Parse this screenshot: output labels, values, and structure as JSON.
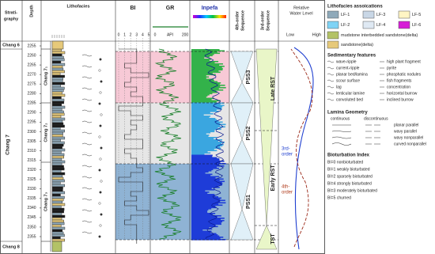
{
  "header": {
    "strat": [
      "Strati-",
      "graphy"
    ],
    "depth": "Depth",
    "litho": "Lithofacies",
    "bi": "BI",
    "bi_ticks": [
      "0",
      "1",
      "2",
      "3",
      "4",
      "5"
    ],
    "gr": "GR",
    "gr_ticks": [
      "0",
      "API",
      "200"
    ],
    "inpefa": "Inpefa",
    "seq4": [
      "4th-order",
      "Sequence"
    ],
    "seq3": [
      "3rd-order",
      "Sequence"
    ],
    "water": [
      "Relative",
      "Water Level"
    ],
    "water_ends": [
      "Low",
      "High"
    ]
  },
  "strat": {
    "chang6": "Chang 6",
    "chang7": "Chang 7",
    "chang8": "Chang 8",
    "sub": [
      "Chang 7₁",
      "Chang 7₂",
      "Chang 7₃"
    ]
  },
  "depths": [
    "2255",
    "2260",
    "2265",
    "2270",
    "2275",
    "2280",
    "2285",
    "2290",
    "2295",
    "2300",
    "2305",
    "2310",
    "2315",
    "2320",
    "2325",
    "2330",
    "2335",
    "2340",
    "2345",
    "2350",
    "2355"
  ],
  "seq4": [
    "PSS3",
    "PSS2",
    "PSS1"
  ],
  "seq3": [
    "Late RST",
    "Early RST",
    "TST"
  ],
  "curve_labels": [
    "3rd-",
    "order",
    "4th-",
    "order"
  ],
  "legend": {
    "litho_title": "Lithofacies assoications",
    "litho": [
      "LF-1",
      "LF-3",
      "LF-5",
      "LF-2",
      "LF-4",
      "LF-6"
    ],
    "litho_long": [
      "mudstone interbedded sandstone(delta)",
      "sandstone(delta)"
    ],
    "sed_title": "Sedimentary features",
    "sed_left": [
      "wave-ripple",
      "current-ripple",
      "planar bed/lamina",
      "scour surface",
      "lag",
      "lenticular lamine",
      "convoluted bed"
    ],
    "sed_right": [
      "high plant fragment",
      "pyrite",
      "phosphatic nodules",
      "fish fragments",
      "concentration",
      "horizontal burrow",
      "inclined burrow"
    ],
    "lam_title": "Lamina Geometry",
    "lam_heads": [
      "continuous",
      "discontinuous"
    ],
    "lam": [
      "planar parallel",
      "wavy parallel",
      "wavy nonparallel",
      "curved nonparallel"
    ],
    "bio_title": "Bioturbation Index",
    "bio": [
      "BI=0 nonbioturbated",
      "BI=1 weakly bioturbated",
      "BI=2 sparsely bioturbated",
      "BI=4 strongly bioturbated",
      "BI=3 moderately bioturbated",
      "BI=5 churned"
    ]
  }
}
